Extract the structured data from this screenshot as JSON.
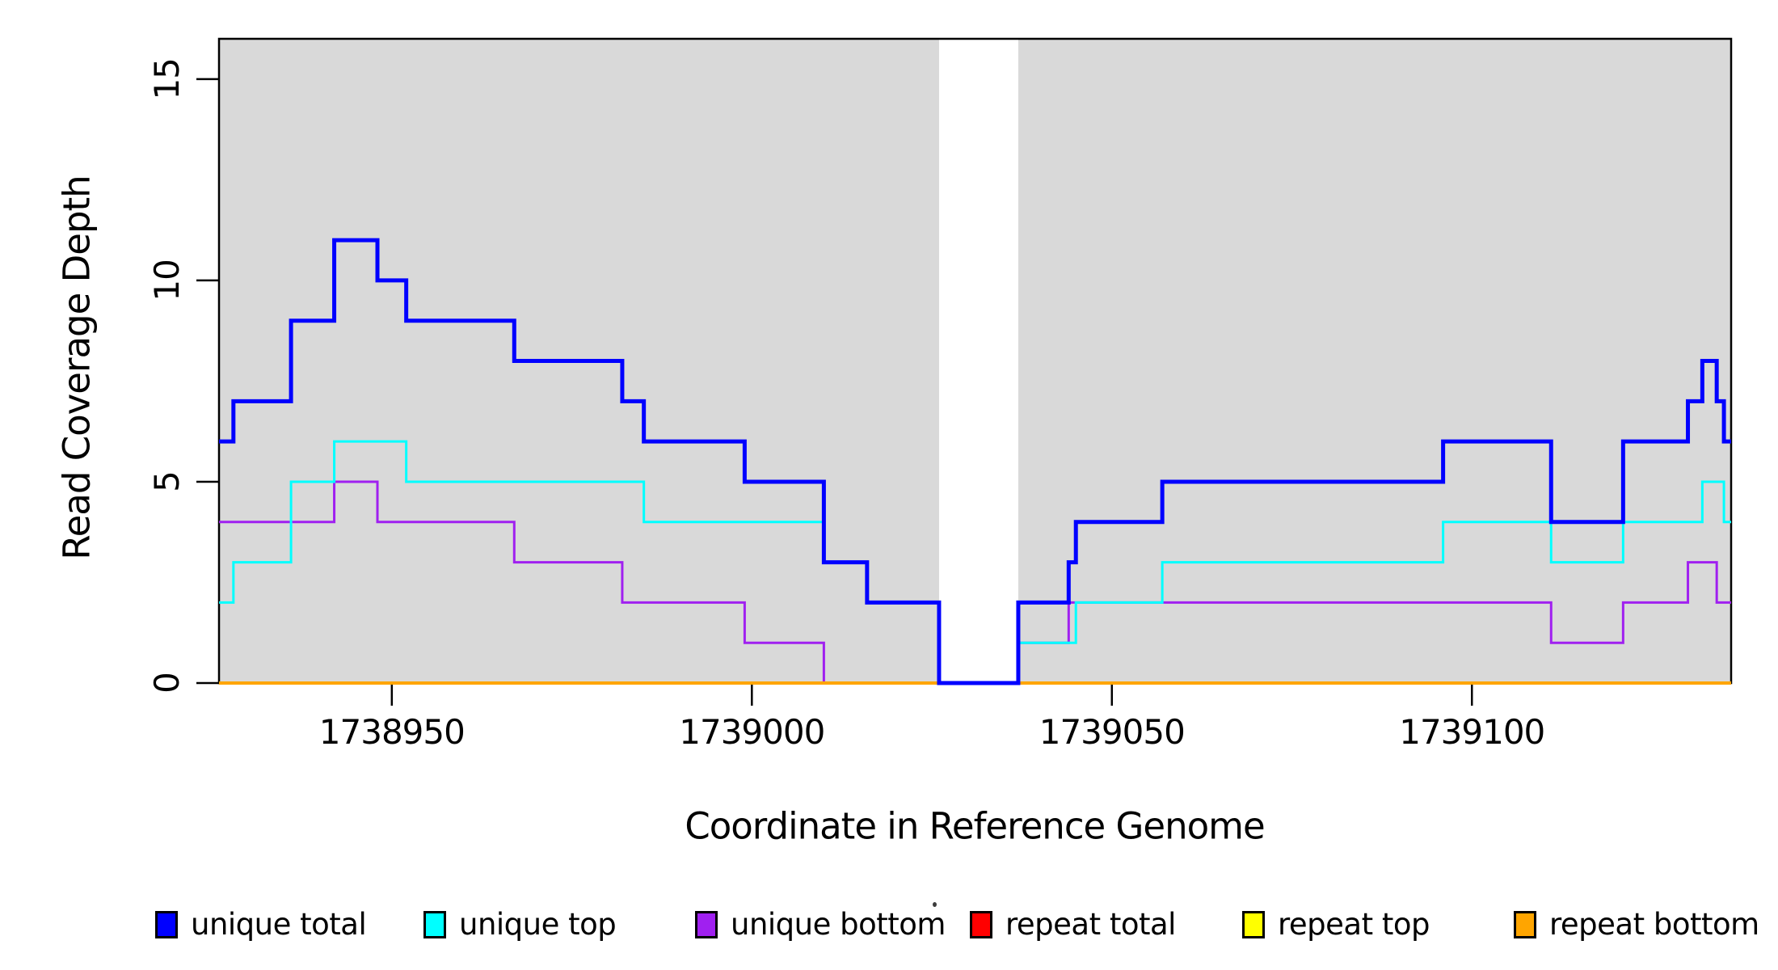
{
  "figure": {
    "x_axis_label": "Coordinate in Reference Genome",
    "y_axis_label": "Read Coverage Depth"
  },
  "chart_data": {
    "type": "line",
    "subtype": "step-post-coverage",
    "title": "",
    "xlabel": "Coordinate in Reference Genome",
    "ylabel": "Read Coverage Depth",
    "xlim": [
      1738926,
      1739136
    ],
    "ylim": [
      0,
      16
    ],
    "x_ticks": [
      1738950,
      1739000,
      1739050,
      1739100
    ],
    "y_ticks": [
      0,
      5,
      10,
      15
    ],
    "grid": false,
    "legend_position": "bottom",
    "background_color": "#ffffff",
    "shaded_region_color": "#d9d9d9",
    "shaded_regions": [
      {
        "name": "unique-mappable-left",
        "x0": 1738926,
        "x1": 1739026
      },
      {
        "name": "unique-mappable-right",
        "x0": 1739037,
        "x1": 1739136
      }
    ],
    "gap_region": {
      "x0": 1739026,
      "x1": 1739037
    },
    "series": [
      {
        "name": "unique total",
        "color": "#0000ff",
        "line_width": 5,
        "points": [
          [
            1738926,
            6
          ],
          [
            1738928,
            7
          ],
          [
            1738936,
            9
          ],
          [
            1738942,
            11
          ],
          [
            1738948,
            10
          ],
          [
            1738952,
            9
          ],
          [
            1738967,
            8
          ],
          [
            1738982,
            7
          ],
          [
            1738985,
            6
          ],
          [
            1738999,
            5
          ],
          [
            1739010,
            3
          ],
          [
            1739016,
            2
          ],
          [
            1739026,
            0
          ],
          [
            1739037,
            2
          ],
          [
            1739044,
            3
          ],
          [
            1739045,
            4
          ],
          [
            1739057,
            5
          ],
          [
            1739096,
            6
          ],
          [
            1739111,
            4
          ],
          [
            1739121,
            6
          ],
          [
            1739130,
            7
          ],
          [
            1739132,
            8
          ],
          [
            1739134,
            7
          ],
          [
            1739135,
            6
          ]
        ]
      },
      {
        "name": "unique top",
        "color": "#00ffff",
        "line_width": 3,
        "points": [
          [
            1738926,
            2
          ],
          [
            1738928,
            3
          ],
          [
            1738936,
            5
          ],
          [
            1738942,
            6
          ],
          [
            1738952,
            5
          ],
          [
            1738985,
            4
          ],
          [
            1739010,
            3
          ],
          [
            1739016,
            2
          ],
          [
            1739026,
            0
          ],
          [
            1739037,
            1
          ],
          [
            1739045,
            2
          ],
          [
            1739057,
            3
          ],
          [
            1739096,
            4
          ],
          [
            1739111,
            3
          ],
          [
            1739121,
            4
          ],
          [
            1739132,
            5
          ],
          [
            1739135,
            4
          ]
        ]
      },
      {
        "name": "unique bottom",
        "color": "#a020f0",
        "line_width": 3,
        "points": [
          [
            1738926,
            4
          ],
          [
            1738942,
            5
          ],
          [
            1738948,
            4
          ],
          [
            1738967,
            3
          ],
          [
            1738982,
            2
          ],
          [
            1738999,
            1
          ],
          [
            1739010,
            0
          ],
          [
            1739037,
            1
          ],
          [
            1739044,
            2
          ],
          [
            1739111,
            1
          ],
          [
            1739121,
            2
          ],
          [
            1739130,
            3
          ],
          [
            1739134,
            2
          ]
        ]
      },
      {
        "name": "repeat total",
        "color": "#ff0000",
        "line_width": 3,
        "points": [
          [
            1738926,
            0
          ]
        ]
      },
      {
        "name": "repeat top",
        "color": "#ffff00",
        "line_width": 3,
        "points": [
          [
            1738926,
            0
          ]
        ]
      },
      {
        "name": "repeat bottom",
        "color": "#ffa500",
        "line_width": 4,
        "points": [
          [
            1738926,
            0
          ]
        ]
      }
    ],
    "draw_order": [
      "repeat total",
      "repeat top",
      "unique bottom",
      "repeat bottom",
      "unique top",
      "unique total"
    ],
    "legend": [
      {
        "label": "unique total",
        "color": "#0000ff"
      },
      {
        "label": "unique top",
        "color": "#00ffff"
      },
      {
        "label": "unique bottom",
        "color": "#a020f0"
      },
      {
        "label": "repeat total",
        "color": "#ff0000"
      },
      {
        "label": "repeat top",
        "color": "#ffff00"
      },
      {
        "label": "repeat bottom",
        "color": "#ffa500"
      }
    ]
  }
}
